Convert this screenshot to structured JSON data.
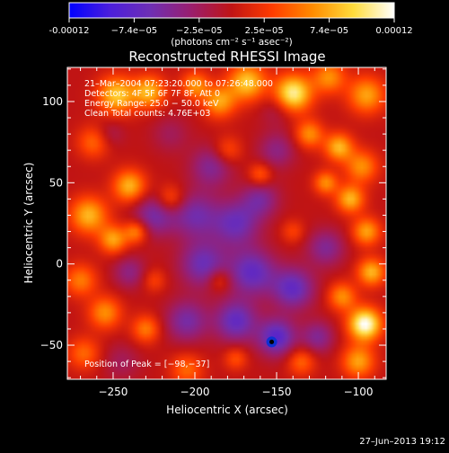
{
  "colorbar": {
    "ticks": [
      "-0.00012",
      "−7.4e−05",
      "−2.5e−05",
      "2.5e−05",
      "7.4e−05",
      "0.00012"
    ],
    "units_label": "(photons cm⁻² s⁻¹ asec⁻²)"
  },
  "chart_data": {
    "type": "heatmap",
    "title": "Reconstructed RHESSI Image",
    "xlabel": "Heliocentric X (arcsec)",
    "ylabel": "Heliocentric Y (arcsec)",
    "xlim": [
      -278,
      -83
    ],
    "ylim": [
      -71,
      121
    ],
    "x_ticks": [
      -250,
      -200,
      -150,
      -100
    ],
    "x_tick_labels": [
      "−250",
      "−200",
      "−150",
      "−100"
    ],
    "y_ticks": [
      -50,
      0,
      50,
      100
    ],
    "y_tick_labels": [
      "−50",
      "0",
      "50",
      "100"
    ],
    "value_range": [
      -0.00012,
      0.00012
    ],
    "colormap": [
      "#0000ff",
      "#4b1edc",
      "#6e2fb4",
      "#9a1e6e",
      "#c01414",
      "#ff3c00",
      "#ff8c00",
      "#ffdc3c",
      "#ffffff"
    ],
    "annotations": [
      "21–Mar–2004 07:23:20.000 to 07:26:48.000",
      "Detectors: 4F 5F 6F 7F 8F, Att 0",
      "Energy Range: 25.0 − 50.0 keV",
      "Clean    Total counts: 4.76E+03"
    ],
    "peak_text": "Position of Peak = [−98,−37]",
    "peak": [
      -98,
      -37
    ],
    "marker": [
      -153,
      -48
    ],
    "blobs": [
      {
        "x": -248,
        "y": 104,
        "a": 1.1,
        "s": 8
      },
      {
        "x": -228,
        "y": 106,
        "a": 1.0,
        "s": 7
      },
      {
        "x": -200,
        "y": 110,
        "a": 0.8,
        "s": 6
      },
      {
        "x": -185,
        "y": 100,
        "a": 0.9,
        "s": 7
      },
      {
        "x": -168,
        "y": 112,
        "a": 1.1,
        "s": 8
      },
      {
        "x": -140,
        "y": 105,
        "a": 1.4,
        "s": 8
      },
      {
        "x": -118,
        "y": 115,
        "a": 0.8,
        "s": 7
      },
      {
        "x": -95,
        "y": 104,
        "a": 0.9,
        "s": 8
      },
      {
        "x": -262,
        "y": 75,
        "a": 0.6,
        "s": 7
      },
      {
        "x": -130,
        "y": 80,
        "a": 0.8,
        "s": 6
      },
      {
        "x": -112,
        "y": 72,
        "a": 1.0,
        "s": 6
      },
      {
        "x": -98,
        "y": 60,
        "a": 0.8,
        "s": 7
      },
      {
        "x": -265,
        "y": 30,
        "a": 1.0,
        "s": 8
      },
      {
        "x": -240,
        "y": 48,
        "a": 1.0,
        "s": 7
      },
      {
        "x": -250,
        "y": 15,
        "a": 0.9,
        "s": 6
      },
      {
        "x": -236,
        "y": 20,
        "a": 0.8,
        "s": 5
      },
      {
        "x": -215,
        "y": 40,
        "a": 0.6,
        "s": 6
      },
      {
        "x": -180,
        "y": 70,
        "a": 0.5,
        "s": 6
      },
      {
        "x": -160,
        "y": 55,
        "a": 0.6,
        "s": 5
      },
      {
        "x": -120,
        "y": 50,
        "a": 0.8,
        "s": 5
      },
      {
        "x": -105,
        "y": 40,
        "a": 1.0,
        "s": 6
      },
      {
        "x": -95,
        "y": 20,
        "a": 0.9,
        "s": 6
      },
      {
        "x": -92,
        "y": -5,
        "a": 1.0,
        "s": 6
      },
      {
        "x": -96,
        "y": -37,
        "a": 1.6,
        "s": 7
      },
      {
        "x": -110,
        "y": -20,
        "a": 0.8,
        "s": 6
      },
      {
        "x": -100,
        "y": -60,
        "a": 0.9,
        "s": 7
      },
      {
        "x": -270,
        "y": -10,
        "a": 0.7,
        "s": 7
      },
      {
        "x": -255,
        "y": -30,
        "a": 0.8,
        "s": 7
      },
      {
        "x": -268,
        "y": -55,
        "a": 0.6,
        "s": 7
      },
      {
        "x": -230,
        "y": -40,
        "a": 0.7,
        "s": 6
      },
      {
        "x": -205,
        "y": -65,
        "a": 0.6,
        "s": 7
      },
      {
        "x": -175,
        "y": -58,
        "a": 0.5,
        "s": 5
      },
      {
        "x": -135,
        "y": -60,
        "a": 0.6,
        "s": 6
      },
      {
        "x": -225,
        "y": -10,
        "a": 0.4,
        "s": 5
      },
      {
        "x": -185,
        "y": -10,
        "a": 0.5,
        "s": 5
      },
      {
        "x": -140,
        "y": 20,
        "a": 0.4,
        "s": 5
      },
      {
        "x": -215,
        "y": 80,
        "a": -0.3,
        "s": 8
      },
      {
        "x": -190,
        "y": 60,
        "a": -0.6,
        "s": 9
      },
      {
        "x": -225,
        "y": 30,
        "a": -0.7,
        "s": 9
      },
      {
        "x": -200,
        "y": 30,
        "a": -0.7,
        "s": 10
      },
      {
        "x": -175,
        "y": 25,
        "a": -0.8,
        "s": 10
      },
      {
        "x": -160,
        "y": 40,
        "a": -0.6,
        "s": 8
      },
      {
        "x": -150,
        "y": 70,
        "a": -0.5,
        "s": 8
      },
      {
        "x": -195,
        "y": 0,
        "a": -0.8,
        "s": 10
      },
      {
        "x": -165,
        "y": -5,
        "a": -0.9,
        "s": 10
      },
      {
        "x": -140,
        "y": -15,
        "a": -0.9,
        "s": 9
      },
      {
        "x": -120,
        "y": 10,
        "a": -0.6,
        "s": 8
      },
      {
        "x": -240,
        "y": -5,
        "a": -0.5,
        "s": 7
      },
      {
        "x": -205,
        "y": -35,
        "a": -0.7,
        "s": 9
      },
      {
        "x": -175,
        "y": -35,
        "a": -0.9,
        "s": 9
      },
      {
        "x": -150,
        "y": -45,
        "a": -1.0,
        "s": 8
      },
      {
        "x": -125,
        "y": -45,
        "a": -0.6,
        "s": 7
      },
      {
        "x": -245,
        "y": -60,
        "a": -0.3,
        "s": 8
      },
      {
        "x": -150,
        "y": 95,
        "a": -0.3,
        "s": 7
      },
      {
        "x": -252,
        "y": 80,
        "a": -0.3,
        "s": 6
      }
    ]
  },
  "footer": {
    "timestamp": "27–Jun–2013 19:12"
  }
}
